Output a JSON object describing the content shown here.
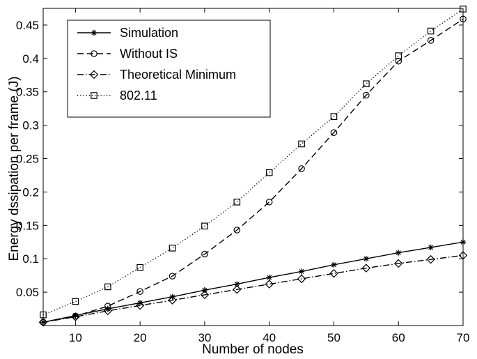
{
  "chart_data": {
    "type": "line",
    "title": "",
    "xlabel": "Number of nodes",
    "ylabel": "Energy dssipation per frame (J)",
    "xlim": [
      5,
      70
    ],
    "ylim": [
      0,
      0.475
    ],
    "grid": false,
    "legend_position": "top-left",
    "x": [
      5,
      10,
      15,
      20,
      25,
      30,
      35,
      40,
      45,
      50,
      55,
      60,
      65,
      70
    ],
    "x_ticks": [
      10,
      20,
      30,
      40,
      50,
      60,
      70
    ],
    "y_ticks": [
      0.05,
      0.1,
      0.15,
      0.2,
      0.25,
      0.3,
      0.35,
      0.4,
      0.45
    ],
    "series": [
      {
        "name": "Simulation",
        "line_style": "solid",
        "marker": "asterisk",
        "color": "#000000",
        "values": [
          0.005,
          0.015,
          0.025,
          0.034,
          0.043,
          0.053,
          0.062,
          0.072,
          0.081,
          0.091,
          0.1,
          0.109,
          0.117,
          0.125
        ]
      },
      {
        "name": "Without IS",
        "line_style": "dashed",
        "marker": "circle",
        "color": "#000000",
        "values": [
          0.005,
          0.014,
          0.029,
          0.051,
          0.074,
          0.107,
          0.143,
          0.185,
          0.235,
          0.289,
          0.345,
          0.396,
          0.427,
          0.459
        ]
      },
      {
        "name": "Theoretical Minimum",
        "line_style": "dashdot",
        "marker": "diamond",
        "color": "#000000",
        "values": [
          0.005,
          0.013,
          0.022,
          0.03,
          0.038,
          0.046,
          0.054,
          0.062,
          0.07,
          0.078,
          0.086,
          0.093,
          0.099,
          0.105
        ]
      },
      {
        "name": "802.11",
        "line_style": "dotted",
        "marker": "square",
        "color": "#000000",
        "values": [
          0.016,
          0.036,
          0.058,
          0.087,
          0.116,
          0.149,
          0.185,
          0.229,
          0.272,
          0.313,
          0.362,
          0.404,
          0.441,
          0.474
        ]
      }
    ]
  }
}
